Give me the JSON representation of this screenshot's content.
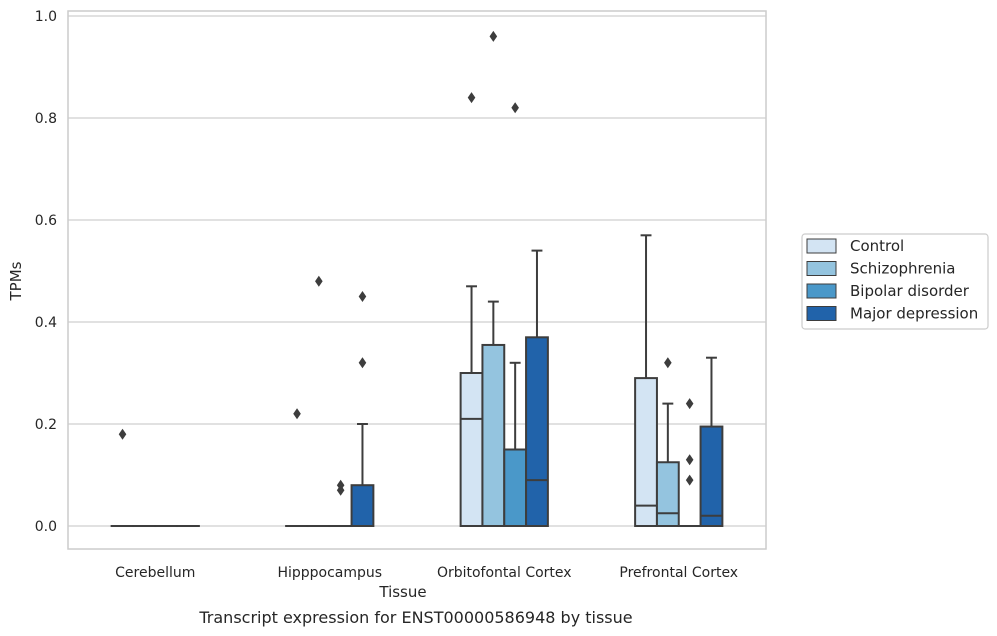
{
  "chart_data": {
    "type": "box",
    "xlabel": "Tissue",
    "ylabel": "TPMs",
    "caption": "Transcript expression for ENST00000586948 by tissue",
    "ylim": [
      -0.045,
      1.01
    ],
    "yticks": [
      "0.0",
      "0.2",
      "0.4",
      "0.6",
      "0.8",
      "1.0"
    ],
    "grid": true,
    "legend_position": "right",
    "categories": [
      "Cerebellum",
      "Hipppocampus",
      "Orbitofontal Cortex",
      "Prefrontal Cortex"
    ],
    "series": [
      {
        "name": "Control",
        "color": "#d3e4f3",
        "boxes": [
          {
            "q1": 0,
            "median": 0,
            "q3": 0,
            "whisker_low": 0,
            "whisker_high": 0,
            "outliers": [
              0.18
            ]
          },
          {
            "q1": 0,
            "median": 0,
            "q3": 0,
            "whisker_low": 0,
            "whisker_high": 0,
            "outliers": [
              0.22
            ]
          },
          {
            "q1": 0,
            "median": 0.21,
            "q3": 0.3,
            "whisker_low": 0,
            "whisker_high": 0.47,
            "outliers": [
              0.84
            ]
          },
          {
            "q1": 0,
            "median": 0.04,
            "q3": 0.29,
            "whisker_low": 0,
            "whisker_high": 0.57,
            "outliers": []
          }
        ]
      },
      {
        "name": "Schizophrenia",
        "color": "#94c4df",
        "boxes": [
          {
            "q1": 0,
            "median": 0,
            "q3": 0,
            "whisker_low": 0,
            "whisker_high": 0,
            "outliers": []
          },
          {
            "q1": 0,
            "median": 0,
            "q3": 0,
            "whisker_low": 0,
            "whisker_high": 0,
            "outliers": [
              0.48
            ]
          },
          {
            "q1": 0,
            "median": 0,
            "q3": 0.355,
            "whisker_low": 0,
            "whisker_high": 0.44,
            "outliers": [
              0.96
            ]
          },
          {
            "q1": 0,
            "median": 0.025,
            "q3": 0.125,
            "whisker_low": 0,
            "whisker_high": 0.24,
            "outliers": [
              0.32
            ]
          }
        ]
      },
      {
        "name": "Bipolar disorder",
        "color": "#4a98c9",
        "boxes": [
          {
            "q1": 0,
            "median": 0,
            "q3": 0,
            "whisker_low": 0,
            "whisker_high": 0,
            "outliers": []
          },
          {
            "q1": 0,
            "median": 0,
            "q3": 0,
            "whisker_low": 0,
            "whisker_high": 0,
            "outliers": [
              0.08,
              0.07
            ]
          },
          {
            "q1": 0,
            "median": 0,
            "q3": 0.15,
            "whisker_low": 0,
            "whisker_high": 0.32,
            "outliers": [
              0.82
            ]
          },
          {
            "q1": 0,
            "median": 0,
            "q3": 0,
            "whisker_low": 0,
            "whisker_high": 0,
            "outliers": [
              0.24,
              0.13,
              0.09
            ]
          }
        ]
      },
      {
        "name": "Major depression",
        "color": "#2163aa",
        "boxes": [
          {
            "q1": 0,
            "median": 0,
            "q3": 0,
            "whisker_low": 0,
            "whisker_high": 0,
            "outliers": []
          },
          {
            "q1": 0,
            "median": 0,
            "q3": 0.08,
            "whisker_low": 0,
            "whisker_high": 0.2,
            "outliers": [
              0.45,
              0.32
            ]
          },
          {
            "q1": 0,
            "median": 0.09,
            "q3": 0.37,
            "whisker_low": 0,
            "whisker_high": 0.54,
            "outliers": []
          },
          {
            "q1": 0,
            "median": 0.02,
            "q3": 0.195,
            "whisker_low": 0,
            "whisker_high": 0.33,
            "outliers": []
          }
        ]
      }
    ]
  }
}
